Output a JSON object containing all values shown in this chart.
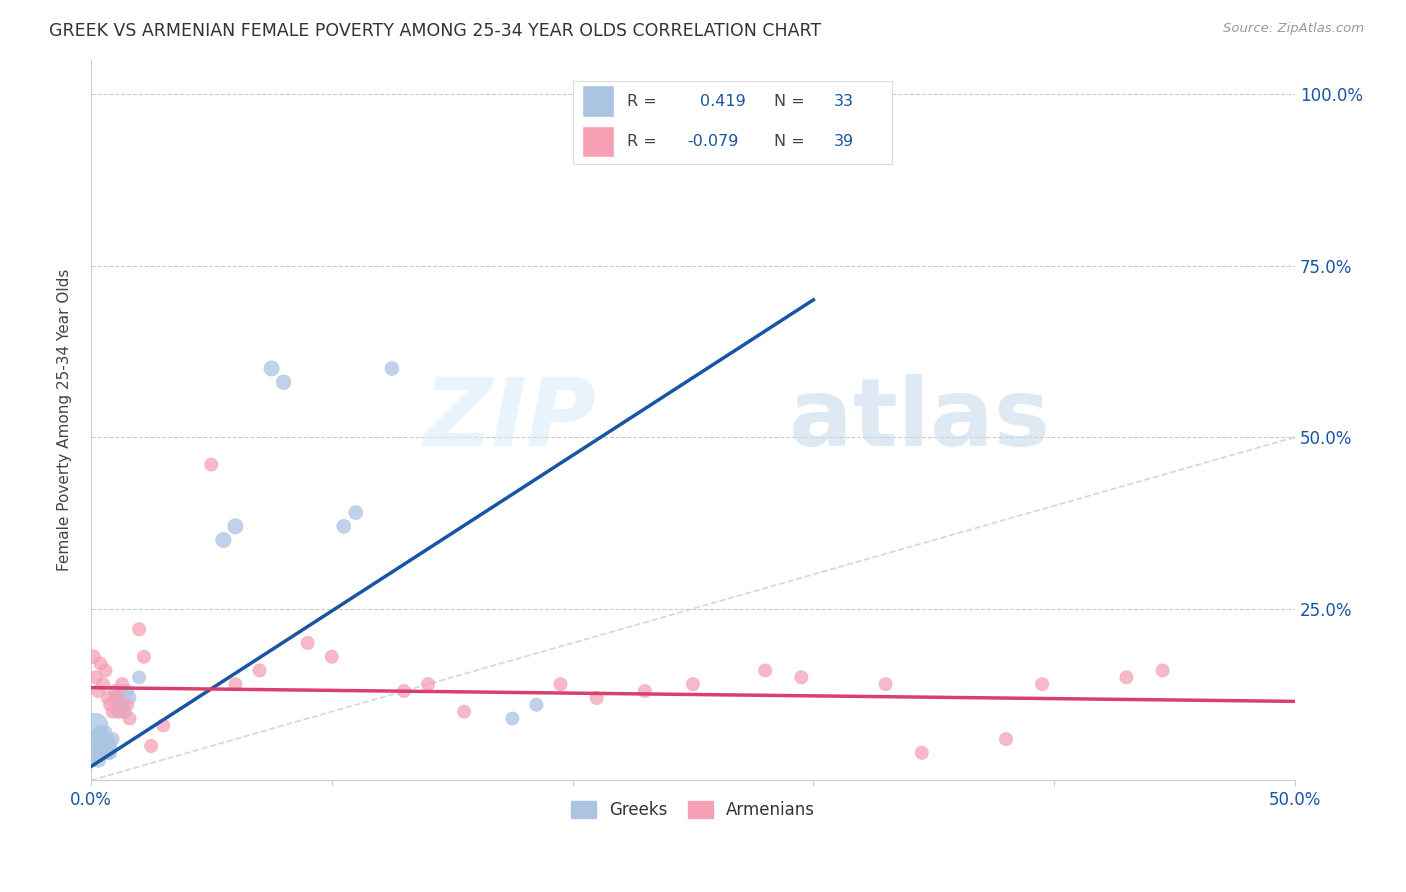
{
  "title": "GREEK VS ARMENIAN FEMALE POVERTY AMONG 25-34 YEAR OLDS CORRELATION CHART",
  "source": "Source: ZipAtlas.com",
  "ylabel": "Female Poverty Among 25-34 Year Olds",
  "xlim": [
    0.0,
    0.5
  ],
  "ylim": [
    0.0,
    1.05
  ],
  "greek_R": 0.419,
  "greek_N": 33,
  "armenian_R": -0.079,
  "armenian_N": 39,
  "greek_color": "#aac4e2",
  "armenian_color": "#f5a0b5",
  "greek_line_color": "#1855a3",
  "armenian_line_color": "#d94070",
  "diagonal_color": "#b8d0e8",
  "watermark_zip": "ZIP",
  "watermark_atlas": "atlas",
  "background_color": "#ffffff",
  "legend_text_color": "#1855a3",
  "legend_label_color": "#444444",
  "greek_x": [
    0.001,
    0.002,
    0.002,
    0.003,
    0.003,
    0.004,
    0.004,
    0.005,
    0.005,
    0.006,
    0.006,
    0.007,
    0.007,
    0.008,
    0.008,
    0.009,
    0.01,
    0.011,
    0.012,
    0.013,
    0.014,
    0.015,
    0.016,
    0.02,
    0.055,
    0.06,
    0.075,
    0.08,
    0.105,
    0.11,
    0.125,
    0.175,
    0.185
  ],
  "greek_y": [
    0.05,
    0.08,
    0.04,
    0.06,
    0.03,
    0.07,
    0.05,
    0.06,
    0.04,
    0.07,
    0.05,
    0.04,
    0.06,
    0.05,
    0.04,
    0.06,
    0.12,
    0.1,
    0.13,
    0.11,
    0.1,
    0.13,
    0.12,
    0.15,
    0.35,
    0.37,
    0.6,
    0.58,
    0.37,
    0.39,
    0.6,
    0.09,
    0.11
  ],
  "greek_size": [
    500,
    300,
    200,
    150,
    120,
    100,
    100,
    100,
    90,
    90,
    90,
    90,
    90,
    90,
    90,
    90,
    90,
    90,
    90,
    90,
    90,
    90,
    90,
    90,
    120,
    120,
    120,
    110,
    100,
    100,
    100,
    90,
    90
  ],
  "armenian_x": [
    0.001,
    0.002,
    0.003,
    0.004,
    0.005,
    0.006,
    0.007,
    0.008,
    0.009,
    0.01,
    0.011,
    0.012,
    0.013,
    0.015,
    0.016,
    0.02,
    0.022,
    0.025,
    0.03,
    0.05,
    0.06,
    0.07,
    0.09,
    0.1,
    0.13,
    0.14,
    0.155,
    0.195,
    0.21,
    0.23,
    0.25,
    0.28,
    0.295,
    0.33,
    0.345,
    0.38,
    0.395,
    0.43,
    0.445
  ],
  "armenian_y": [
    0.18,
    0.15,
    0.13,
    0.17,
    0.14,
    0.16,
    0.12,
    0.11,
    0.1,
    0.13,
    0.12,
    0.1,
    0.14,
    0.11,
    0.09,
    0.22,
    0.18,
    0.05,
    0.08,
    0.46,
    0.14,
    0.16,
    0.2,
    0.18,
    0.13,
    0.14,
    0.1,
    0.14,
    0.12,
    0.13,
    0.14,
    0.16,
    0.15,
    0.14,
    0.04,
    0.06,
    0.14,
    0.15,
    0.16
  ],
  "armenian_size": [
    100,
    90,
    90,
    90,
    90,
    90,
    90,
    90,
    90,
    90,
    90,
    90,
    90,
    90,
    90,
    90,
    90,
    90,
    90,
    90,
    90,
    90,
    90,
    90,
    90,
    90,
    90,
    90,
    90,
    90,
    90,
    90,
    90,
    90,
    90,
    90,
    90,
    90,
    90
  ],
  "greek_line_x": [
    0.0,
    0.3
  ],
  "greek_line_y": [
    0.02,
    0.7
  ],
  "armenian_line_x": [
    0.0,
    0.5
  ],
  "armenian_line_y": [
    0.135,
    0.115
  ]
}
